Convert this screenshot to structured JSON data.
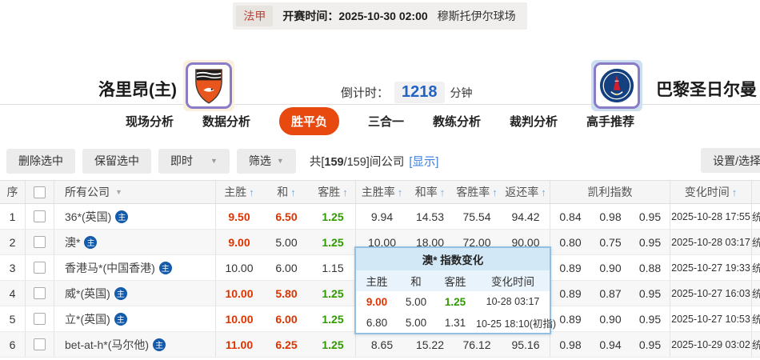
{
  "colors": {
    "accent_orange": "#e8490f",
    "odds_up_red": "#dd3300",
    "odds_down_green": "#2f9a00",
    "link_blue": "#3b7dd8",
    "countdown_blue": "#2463c3",
    "badge_blue": "#155bab"
  },
  "icons": {
    "sort_up": "↑",
    "dropdown": "▼",
    "home_badge": "主",
    "truncated_glyph": "统"
  },
  "match_header": {
    "league": "法甲",
    "kickoff_label": "开赛时间：",
    "kickoff_time": "2025-10-30 02:00",
    "venue": "穆斯托伊尔球场",
    "home_team": "洛里昂(主)",
    "away_team": "巴黎圣日尔曼",
    "countdown_label": "倒计时：",
    "countdown_value": "1218",
    "countdown_unit": "分钟"
  },
  "tabs": [
    {
      "id": "live-analysis",
      "label": "现场分析",
      "active": false
    },
    {
      "id": "data-analysis",
      "label": "数据分析",
      "active": false
    },
    {
      "id": "win-draw-loss",
      "label": "胜平负",
      "active": true
    },
    {
      "id": "three-in-one",
      "label": "三合一",
      "active": false
    },
    {
      "id": "coach-analysis",
      "label": "教练分析",
      "active": false
    },
    {
      "id": "referee-analysis",
      "label": "裁判分析",
      "active": false
    },
    {
      "id": "expert-picks",
      "label": "高手推荐",
      "active": false
    }
  ],
  "toolbar": {
    "delete_selected": "删除选中",
    "keep_selected": "保留选中",
    "realtime_dropdown": "即时",
    "filter_dropdown": "筛选",
    "count_prefix": "共[",
    "count_bold": "159",
    "count_suffix": "/159]间公司",
    "show_link": "[显示]",
    "settings_button": "设置/选择"
  },
  "table": {
    "headers": {
      "seq": "序",
      "company": "所有公司",
      "home": "主胜",
      "draw": "和",
      "away": "客胜",
      "home_rate": "主胜率",
      "draw_rate": "和率",
      "away_rate": "客胜率",
      "return_rate": "返还率",
      "kelly": "凯利指数",
      "change_time": "变化时间"
    },
    "rows": [
      {
        "no": "1",
        "company": "36*(英国)",
        "badge": "主",
        "odds": [
          {
            "v": "9.50",
            "c": "red"
          },
          {
            "v": "6.50",
            "c": "red"
          },
          {
            "v": "1.25",
            "c": "green"
          }
        ],
        "rates": [
          "9.94",
          "14.53",
          "75.54",
          "94.42"
        ],
        "kelly": [
          "0.84",
          "0.98",
          "0.95"
        ],
        "time": "2025-10-28 17:55"
      },
      {
        "no": "2",
        "company": "澳*",
        "badge": "主",
        "odds": [
          {
            "v": "9.00",
            "c": "red"
          },
          {
            "v": "5.00",
            "c": ""
          },
          {
            "v": "1.25",
            "c": "green"
          }
        ],
        "rates": [
          "10.00",
          "18.00",
          "72.00",
          "90.00"
        ],
        "kelly": [
          "0.80",
          "0.75",
          "0.95"
        ],
        "time": "2025-10-28 03:17"
      },
      {
        "no": "3",
        "company": "香港马*(中国香港)",
        "badge": "主",
        "odds": [
          {
            "v": "10.00",
            "c": ""
          },
          {
            "v": "6.00",
            "c": ""
          },
          {
            "v": "1.15",
            "c": ""
          }
        ],
        "rates": [
          "",
          "",
          "",
          ""
        ],
        "kelly": [
          "0.89",
          "0.90",
          "0.88"
        ],
        "time": "2025-10-27 19:33"
      },
      {
        "no": "4",
        "company": "威*(英国)",
        "badge": "主",
        "odds": [
          {
            "v": "10.00",
            "c": "red"
          },
          {
            "v": "5.80",
            "c": "red"
          },
          {
            "v": "1.25",
            "c": "green"
          }
        ],
        "rates": [
          "",
          "",
          "",
          ""
        ],
        "kelly": [
          "0.89",
          "0.87",
          "0.95"
        ],
        "time": "2025-10-27 16:03"
      },
      {
        "no": "5",
        "company": "立*(英国)",
        "badge": "主",
        "odds": [
          {
            "v": "10.00",
            "c": "red"
          },
          {
            "v": "6.00",
            "c": "red"
          },
          {
            "v": "1.25",
            "c": "green"
          }
        ],
        "rates": [
          "",
          "",
          "",
          ""
        ],
        "kelly": [
          "0.89",
          "0.90",
          "0.95"
        ],
        "time": "2025-10-27 10:53"
      },
      {
        "no": "6",
        "company": "bet-at-h*(马尔他)",
        "badge": "主",
        "odds": [
          {
            "v": "11.00",
            "c": "red"
          },
          {
            "v": "6.25",
            "c": "red"
          },
          {
            "v": "1.25",
            "c": "green"
          }
        ],
        "rates": [
          "8.65",
          "15.22",
          "76.12",
          "95.16"
        ],
        "kelly": [
          "0.98",
          "0.94",
          "0.95"
        ],
        "time": "2025-10-29 03:02"
      }
    ]
  },
  "tooltip": {
    "title": "澳* 指数变化",
    "headers": [
      "主胜",
      "和",
      "客胜",
      "变化时间"
    ],
    "rows": [
      {
        "cells": [
          {
            "v": "9.00",
            "c": "red"
          },
          {
            "v": "5.00",
            "c": ""
          },
          {
            "v": "1.25",
            "c": "green"
          },
          {
            "v": "10-28 03:17",
            "c": ""
          }
        ]
      },
      {
        "cells": [
          {
            "v": "6.80",
            "c": ""
          },
          {
            "v": "5.00",
            "c": ""
          },
          {
            "v": "1.31",
            "c": ""
          },
          {
            "v": "10-25 18:10(初指)",
            "c": ""
          }
        ]
      }
    ]
  }
}
